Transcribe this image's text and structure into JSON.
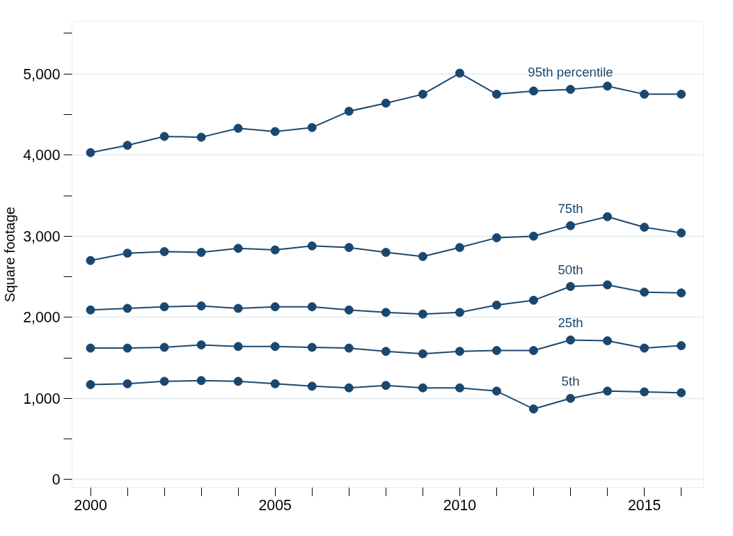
{
  "chart_data": {
    "type": "line",
    "ylabel": "Square footage",
    "x": [
      2000,
      2001,
      2002,
      2003,
      2004,
      2005,
      2006,
      2007,
      2008,
      2009,
      2010,
      2011,
      2012,
      2013,
      2014,
      2015,
      2016
    ],
    "series": [
      {
        "name": "95th percentile",
        "color": "#1a476f",
        "values": [
          4030,
          4120,
          4230,
          4220,
          4330,
          4290,
          4340,
          4540,
          4640,
          4750,
          5010,
          4750,
          4790,
          4810,
          4850,
          4750,
          4750
        ]
      },
      {
        "name": "75th",
        "color": "#1a476f",
        "values": [
          2700,
          2790,
          2810,
          2800,
          2850,
          2830,
          2880,
          2860,
          2800,
          2750,
          2860,
          2980,
          3000,
          3130,
          3240,
          3110,
          3040
        ]
      },
      {
        "name": "50th",
        "color": "#1a476f",
        "values": [
          2090,
          2110,
          2130,
          2140,
          2110,
          2130,
          2130,
          2090,
          2060,
          2040,
          2060,
          2150,
          2210,
          2380,
          2400,
          2310,
          2300
        ]
      },
      {
        "name": "25th",
        "color": "#1a476f",
        "values": [
          1620,
          1620,
          1630,
          1660,
          1640,
          1640,
          1630,
          1620,
          1580,
          1550,
          1580,
          1590,
          1590,
          1720,
          1710,
          1620,
          1650
        ]
      },
      {
        "name": "5th",
        "color": "#1a476f",
        "values": [
          1170,
          1180,
          1210,
          1220,
          1210,
          1180,
          1150,
          1130,
          1160,
          1130,
          1130,
          1090,
          870,
          1000,
          1090,
          1080,
          1070
        ]
      }
    ],
    "xlim": [
      1999.5,
      2016.6
    ],
    "ylim": [
      -100,
      5650
    ],
    "xticks": [
      2000,
      {
        "value": 2001,
        "label": null
      },
      {
        "value": 2002,
        "label": null
      },
      {
        "value": 2003,
        "label": null
      },
      {
        "value": 2004,
        "label": null
      },
      2005,
      {
        "value": 2006,
        "label": null
      },
      {
        "value": 2007,
        "label": null
      },
      {
        "value": 2008,
        "label": null
      },
      {
        "value": 2009,
        "label": null
      },
      2010,
      {
        "value": 2011,
        "label": null
      },
      {
        "value": 2012,
        "label": null
      },
      {
        "value": 2013,
        "label": null
      },
      {
        "value": 2014,
        "label": null
      },
      2015,
      {
        "value": 2016,
        "label": null
      }
    ],
    "yticks": [
      {
        "value": 0,
        "label": "0"
      },
      {
        "value": 500,
        "label": null
      },
      {
        "value": 1000,
        "label": "1,000"
      },
      {
        "value": 1500,
        "label": null
      },
      {
        "value": 2000,
        "label": "2,000"
      },
      {
        "value": 2500,
        "label": null
      },
      {
        "value": 3000,
        "label": "3,000"
      },
      {
        "value": 3500,
        "label": null
      },
      {
        "value": 4000,
        "label": "4,000"
      },
      {
        "value": 4500,
        "label": null
      },
      {
        "value": 5000,
        "label": "5,000"
      },
      {
        "value": 5500,
        "label": null
      }
    ],
    "grid": "y",
    "marker": "circle",
    "line_style": "solid",
    "legend": false
  }
}
